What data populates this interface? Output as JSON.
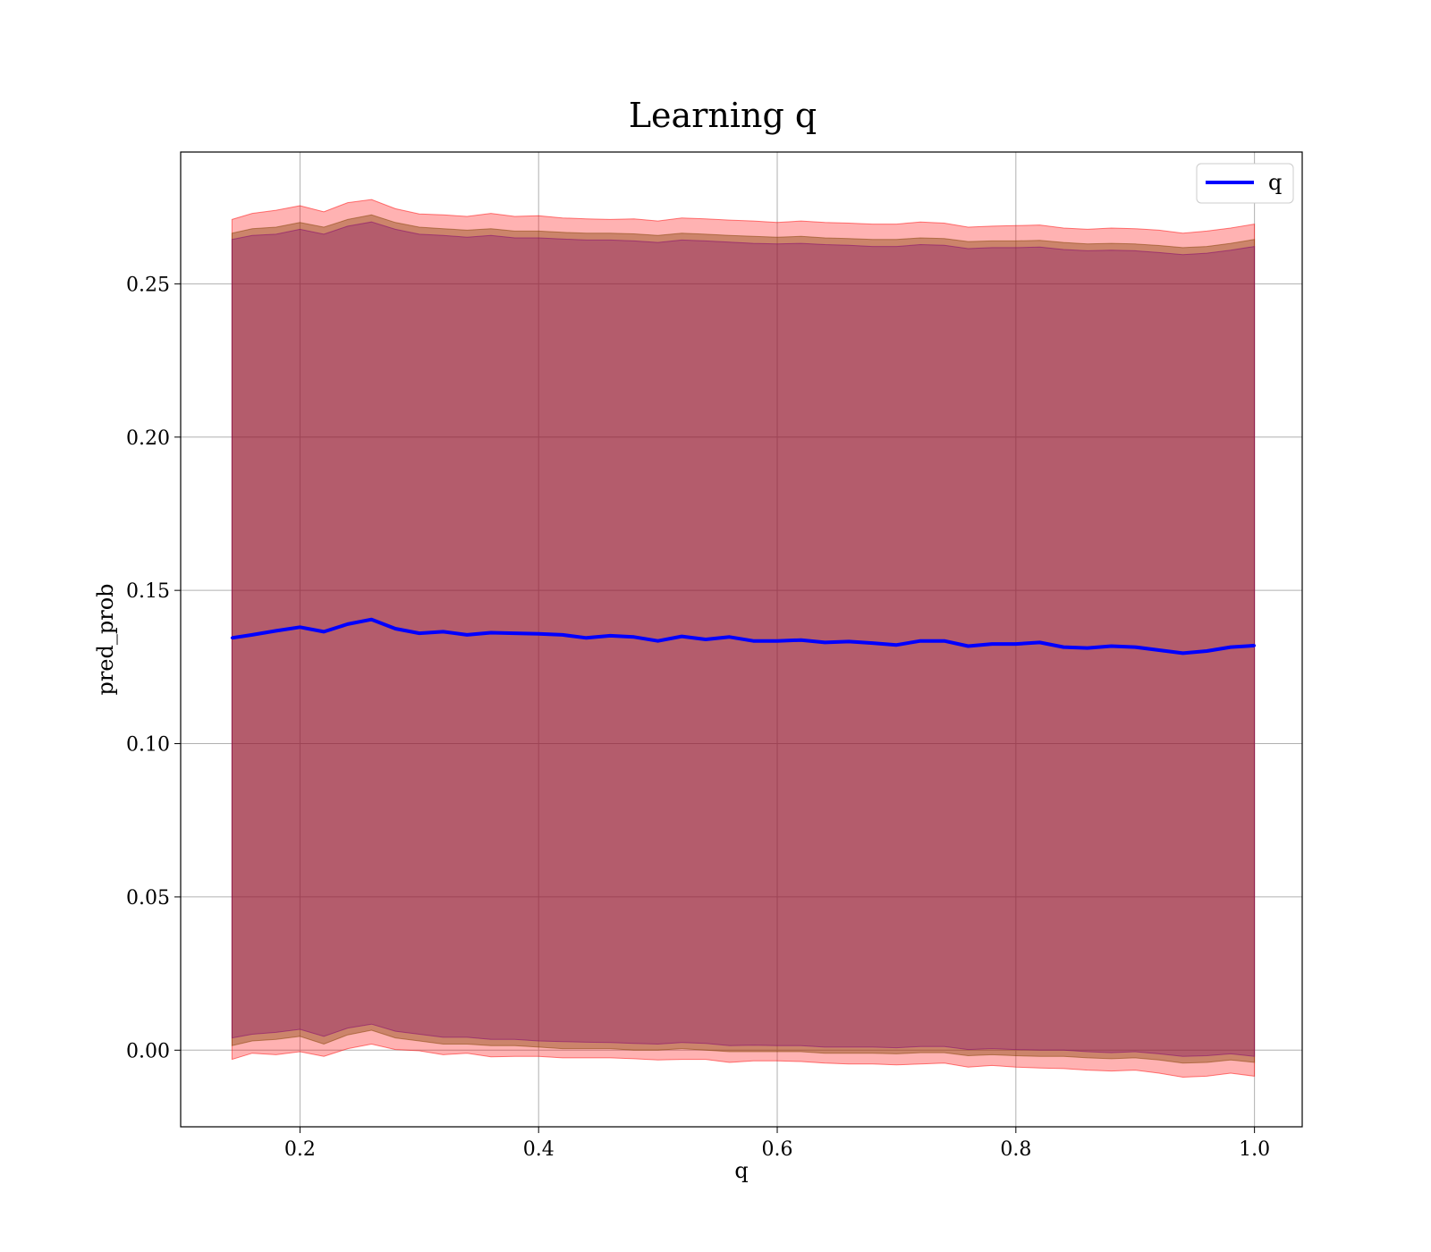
{
  "chart_data": {
    "type": "line",
    "title": "Learning q",
    "xlabel": "q",
    "ylabel": "pred_prob",
    "xlim": [
      0.1,
      1.04
    ],
    "ylim": [
      -0.025,
      0.293
    ],
    "xticks": [
      0.2,
      0.4,
      0.6,
      0.8,
      1.0
    ],
    "xtick_labels": [
      "0.2",
      "0.4",
      "0.6",
      "0.8",
      "1.0"
    ],
    "yticks": [
      0.0,
      0.05,
      0.1,
      0.15,
      0.2,
      0.25
    ],
    "ytick_labels": [
      "0.00",
      "0.05",
      "0.10",
      "0.15",
      "0.20",
      "0.25"
    ],
    "grid": true,
    "legend": {
      "position": "top-right",
      "entries": [
        "q"
      ]
    },
    "colors": {
      "line": "#0000ff",
      "outer_band": "#ff0000",
      "inner_band": "#7f3f00",
      "core_band": "#7f0070"
    },
    "series": [
      {
        "name": "q",
        "x": [
          0.143,
          0.16,
          0.18,
          0.2,
          0.22,
          0.24,
          0.26,
          0.28,
          0.3,
          0.32,
          0.34,
          0.36,
          0.38,
          0.4,
          0.42,
          0.44,
          0.46,
          0.48,
          0.5,
          0.52,
          0.54,
          0.56,
          0.58,
          0.6,
          0.62,
          0.64,
          0.66,
          0.68,
          0.7,
          0.72,
          0.74,
          0.76,
          0.78,
          0.8,
          0.82,
          0.84,
          0.86,
          0.88,
          0.9,
          0.92,
          0.94,
          0.96,
          0.98,
          1.0
        ],
        "y": [
          0.1345,
          0.1355,
          0.1368,
          0.138,
          0.1365,
          0.139,
          0.1405,
          0.1375,
          0.136,
          0.1365,
          0.1355,
          0.1362,
          0.136,
          0.1358,
          0.1355,
          0.1345,
          0.1352,
          0.1348,
          0.1335,
          0.135,
          0.134,
          0.1348,
          0.1335,
          0.1335,
          0.1338,
          0.133,
          0.1333,
          0.1328,
          0.1322,
          0.1335,
          0.1335,
          0.1318,
          0.1325,
          0.1325,
          0.133,
          0.1315,
          0.1312,
          0.1318,
          0.1315,
          0.1305,
          0.1295,
          0.1302,
          0.1315,
          0.132
        ],
        "outer_lower": [
          -0.003,
          -0.001,
          -0.0015,
          -0.0005,
          -0.002,
          0.0005,
          0.002,
          0.0002,
          -0.0002,
          -0.0015,
          -0.001,
          -0.0022,
          -0.002,
          -0.002,
          -0.0025,
          -0.0025,
          -0.0025,
          -0.0028,
          -0.0032,
          -0.003,
          -0.003,
          -0.004,
          -0.0035,
          -0.0035,
          -0.0037,
          -0.0042,
          -0.0045,
          -0.0045,
          -0.0048,
          -0.0045,
          -0.0042,
          -0.0055,
          -0.005,
          -0.0055,
          -0.0058,
          -0.006,
          -0.0065,
          -0.0068,
          -0.0065,
          -0.0075,
          -0.0088,
          -0.0085,
          -0.0075,
          -0.0085
        ],
        "outer_upper": [
          0.271,
          0.273,
          0.274,
          0.2755,
          0.2735,
          0.2765,
          0.2775,
          0.2745,
          0.2728,
          0.2725,
          0.272,
          0.273,
          0.272,
          0.2722,
          0.2715,
          0.2712,
          0.271,
          0.2712,
          0.2705,
          0.2715,
          0.2712,
          0.2708,
          0.2705,
          0.27,
          0.2705,
          0.27,
          0.2698,
          0.2695,
          0.2695,
          0.2702,
          0.2698,
          0.2685,
          0.2688,
          0.269,
          0.2692,
          0.2682,
          0.2678,
          0.2682,
          0.268,
          0.2675,
          0.2665,
          0.2672,
          0.2682,
          0.2695
        ],
        "inner_lower": [
          0.0015,
          0.003,
          0.0035,
          0.0045,
          0.002,
          0.005,
          0.0065,
          0.004,
          0.003,
          0.002,
          0.002,
          0.0015,
          0.0015,
          0.001,
          0.0005,
          0.0005,
          0.0005,
          0.0,
          0.0,
          0.0005,
          0.0,
          -0.0005,
          -0.0005,
          -0.0005,
          -0.0005,
          -0.001,
          -0.001,
          -0.001,
          -0.0012,
          -0.0008,
          -0.0008,
          -0.0018,
          -0.0015,
          -0.0018,
          -0.002,
          -0.002,
          -0.0025,
          -0.0028,
          -0.0025,
          -0.0032,
          -0.0042,
          -0.004,
          -0.0032,
          -0.004
        ],
        "inner_upper": [
          0.2665,
          0.268,
          0.2685,
          0.27,
          0.2685,
          0.271,
          0.2725,
          0.27,
          0.2685,
          0.268,
          0.2675,
          0.268,
          0.2672,
          0.2672,
          0.2668,
          0.2665,
          0.2665,
          0.2663,
          0.2658,
          0.2665,
          0.2662,
          0.2658,
          0.2655,
          0.2652,
          0.2655,
          0.265,
          0.2648,
          0.2645,
          0.2645,
          0.265,
          0.2648,
          0.2638,
          0.264,
          0.264,
          0.2642,
          0.2635,
          0.263,
          0.2632,
          0.263,
          0.2625,
          0.2618,
          0.2622,
          0.2632,
          0.2645
        ],
        "core_lower": [
          0.004,
          0.0052,
          0.0058,
          0.0068,
          0.0045,
          0.0072,
          0.0085,
          0.0062,
          0.0052,
          0.0042,
          0.0042,
          0.0035,
          0.0035,
          0.003,
          0.0028,
          0.0026,
          0.0025,
          0.0022,
          0.002,
          0.0025,
          0.0022,
          0.0015,
          0.0016,
          0.0015,
          0.0015,
          0.001,
          0.001,
          0.001,
          0.0008,
          0.0012,
          0.0012,
          0.0002,
          0.0005,
          0.0002,
          0.0,
          0.0,
          -0.0005,
          -0.0008,
          -0.0005,
          -0.0012,
          -0.002,
          -0.0018,
          -0.0012,
          -0.002
        ],
        "core_upper": [
          0.2645,
          0.2658,
          0.2662,
          0.2678,
          0.2662,
          0.2688,
          0.2702,
          0.2678,
          0.2662,
          0.2658,
          0.2652,
          0.2658,
          0.265,
          0.265,
          0.2646,
          0.2643,
          0.2643,
          0.264,
          0.2635,
          0.2643,
          0.264,
          0.2636,
          0.2632,
          0.263,
          0.2632,
          0.2628,
          0.2626,
          0.2622,
          0.2622,
          0.2628,
          0.2626,
          0.2615,
          0.2618,
          0.2618,
          0.262,
          0.2612,
          0.2608,
          0.261,
          0.2608,
          0.2602,
          0.2595,
          0.26,
          0.261,
          0.2622
        ]
      }
    ]
  }
}
